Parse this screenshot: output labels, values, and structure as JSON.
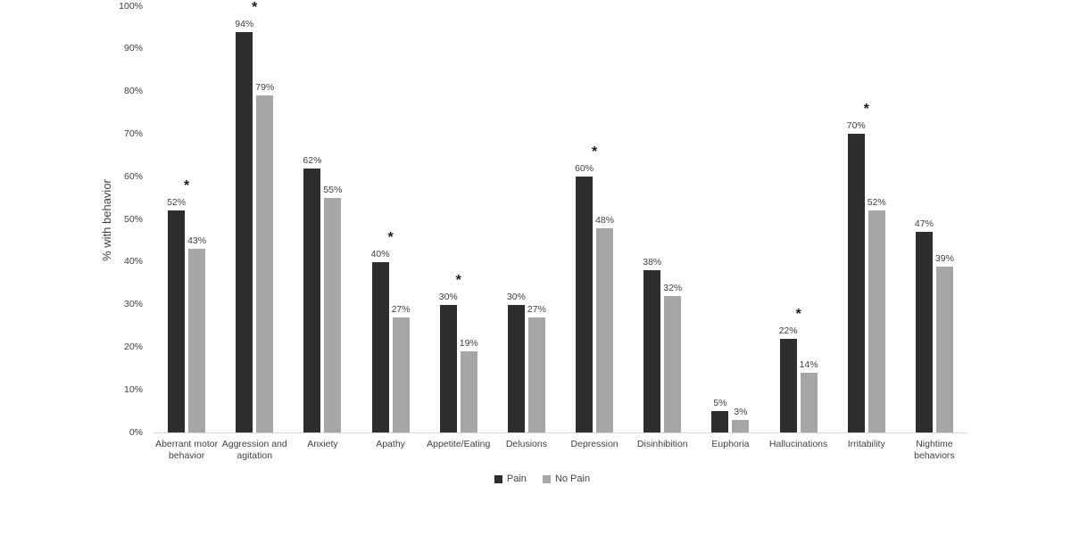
{
  "chart_data": {
    "type": "bar",
    "title": "",
    "xlabel": "",
    "ylabel": "% with behavior",
    "ylim": [
      0,
      100
    ],
    "y_ticks": [
      "0%",
      "10%",
      "20%",
      "30%",
      "40%",
      "50%",
      "60%",
      "70%",
      "80%",
      "90%",
      "100%"
    ],
    "grid": false,
    "legend_position": "bottom",
    "value_suffix": "%",
    "significance_marker": "*",
    "categories": [
      "Aberrant motor behavior",
      "Aggression and agitation",
      "Anxiety",
      "Apathy",
      "Appetite/Eating",
      "Delusions",
      "Depression",
      "Disinhibition",
      "Euphoria",
      "Hallucinations",
      "Irritability",
      "Nightime behaviors"
    ],
    "series": [
      {
        "name": "Pain",
        "color": "#2e2e2e",
        "values": [
          52,
          94,
          62,
          40,
          30,
          30,
          60,
          38,
          5,
          22,
          70,
          47
        ]
      },
      {
        "name": "No Pain",
        "color": "#a6a6a6",
        "values": [
          43,
          79,
          55,
          27,
          19,
          27,
          48,
          32,
          3,
          14,
          52,
          39
        ]
      }
    ],
    "significant_categories": [
      true,
      true,
      false,
      true,
      true,
      false,
      true,
      false,
      false,
      true,
      true,
      false
    ]
  },
  "colors": {
    "text": "#404040",
    "axis_line": "#d9d9d9"
  }
}
